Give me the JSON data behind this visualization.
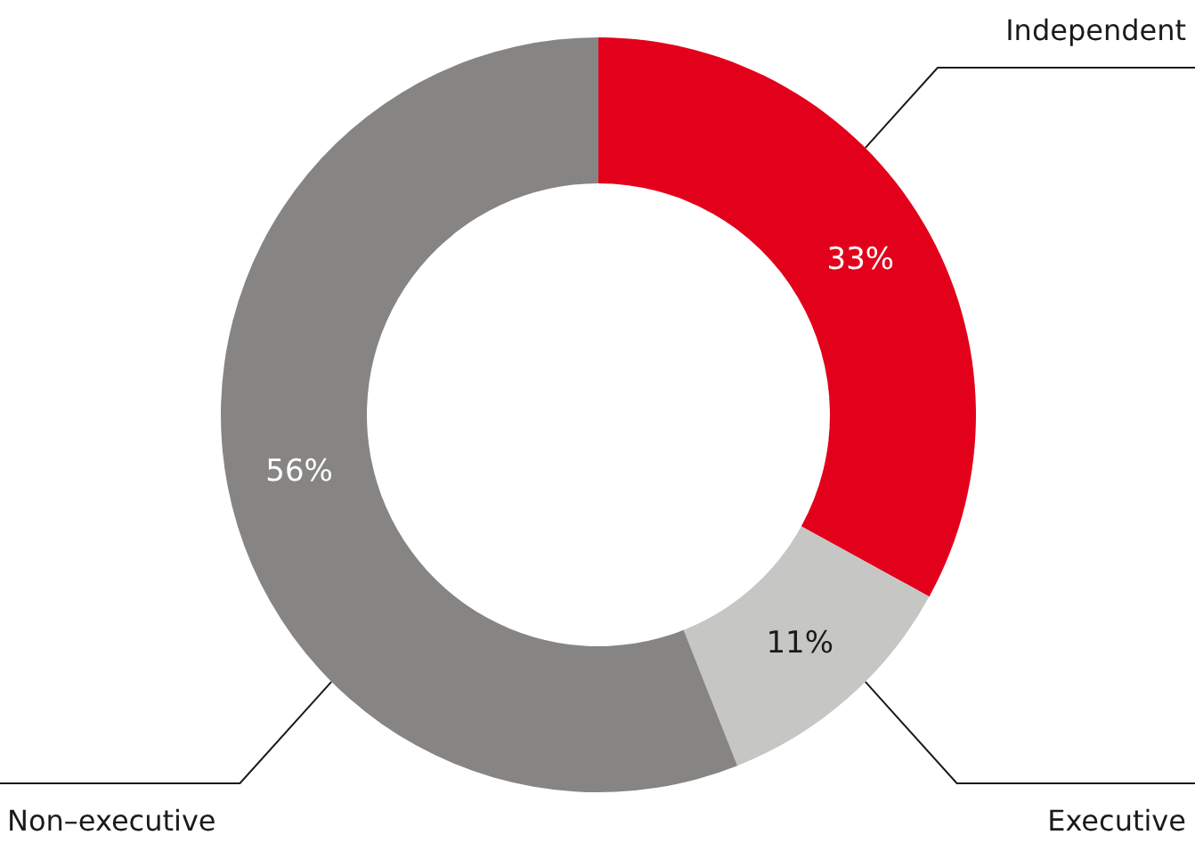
{
  "chart_data": {
    "type": "donut",
    "categories": [
      "Independent",
      "Executive",
      "Non–executive"
    ],
    "values": [
      33,
      11,
      56
    ],
    "colors": [
      "#e3001b",
      "#c6c6c4",
      "#868584"
    ],
    "value_labels": [
      "33%",
      "11%",
      "56%"
    ],
    "legend": false
  }
}
